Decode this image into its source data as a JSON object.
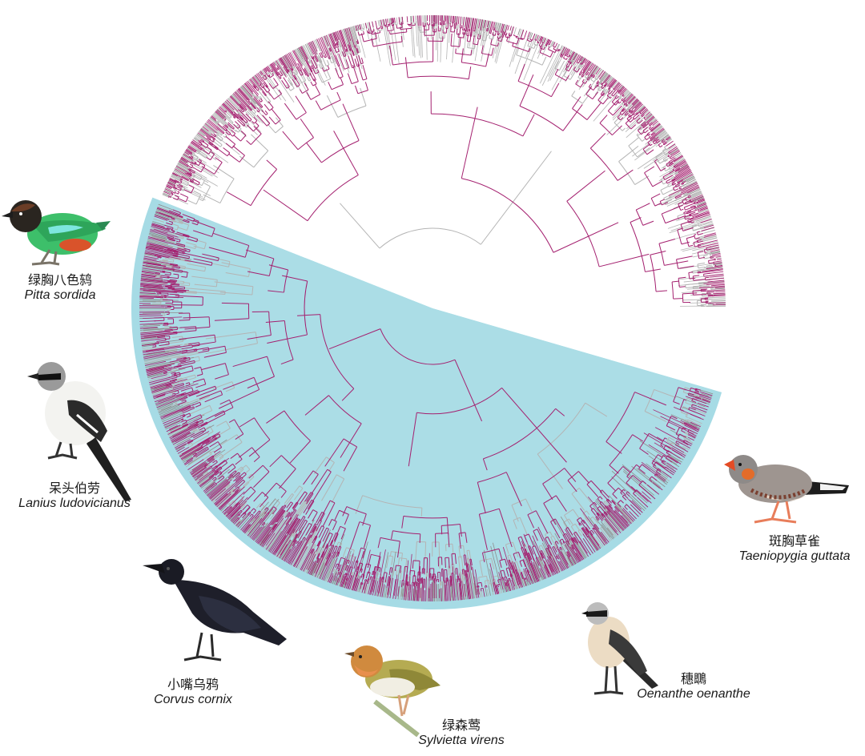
{
  "figure": {
    "colors": {
      "highlight_clade": "#abdde6",
      "highlight_band": "#a6dbe5",
      "branch_magenta": "#a4206f",
      "branch_grey": "#b4b4b4",
      "branch_grey_dark": "#8f8f8f"
    },
    "highlighted_clade_description": "Passeriformes / Oscines sector highlighted in light blue",
    "birds": [
      {
        "id": "pitta",
        "common_name_zh": "绿胸八色鸫",
        "scientific_name": "Pitta sordida",
        "icon": "pitta-bird-illustration"
      },
      {
        "id": "shrike",
        "common_name_zh": "呆头伯劳",
        "scientific_name": "Lanius ludovicianus",
        "icon": "shrike-bird-illustration"
      },
      {
        "id": "crow",
        "common_name_zh": "小嘴乌鸦",
        "scientific_name": "Corvus cornix",
        "icon": "crow-bird-illustration"
      },
      {
        "id": "sylvietta",
        "common_name_zh": "绿森莺",
        "scientific_name": "Sylvietta virens",
        "icon": "warbler-bird-illustration"
      },
      {
        "id": "wheatear",
        "common_name_zh": "穗䳭",
        "scientific_name": "Oenanthe oenanthe",
        "icon": "wheatear-bird-illustration"
      },
      {
        "id": "finch",
        "common_name_zh": "斑胸草雀",
        "scientific_name": "Taeniopygia guttata",
        "icon": "zebra-finch-bird-illustration"
      }
    ]
  }
}
